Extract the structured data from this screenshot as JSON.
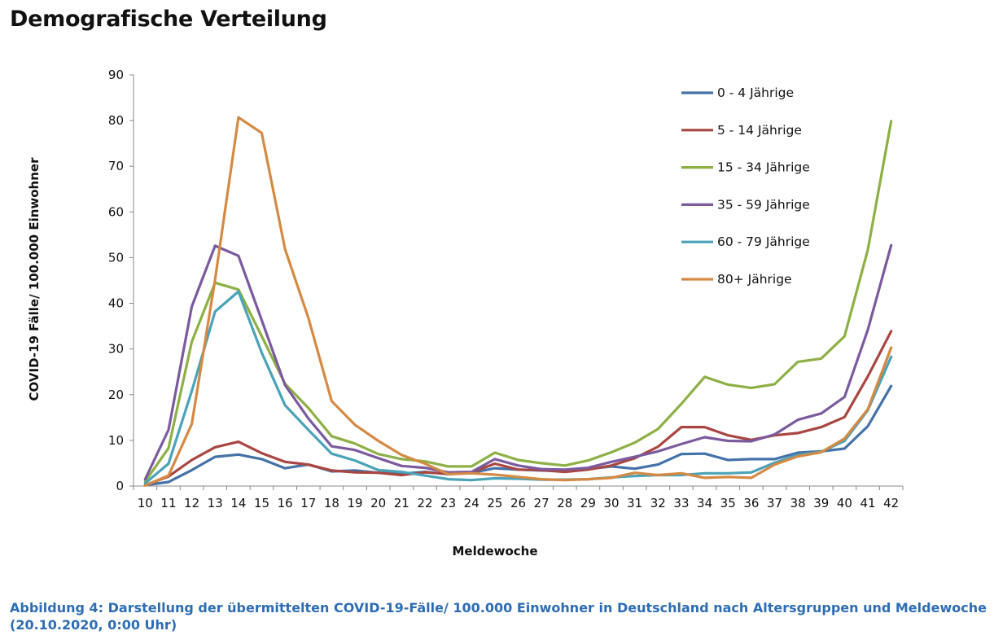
{
  "page": {
    "title": "Demografische Verteilung",
    "caption": "Abbildung 4: Darstellung der übermittelten COVID-19-Fälle/ 100.000 Einwohner in Deutschland nach Altersgruppen und Meldewoche (20.10.2020, 0:00 Uhr)",
    "caption_color": "#2e6db4"
  },
  "chart_data": {
    "type": "line",
    "xlabel": "Meldewoche",
    "ylabel": "COVID-19 Fälle/ 100.000 Einwohner",
    "ylim": [
      0,
      90
    ],
    "y_ticks": [
      0,
      10,
      20,
      30,
      40,
      50,
      60,
      70,
      80,
      90
    ],
    "grid": false,
    "legend_position": "top-right",
    "x": [
      10,
      11,
      12,
      13,
      14,
      15,
      16,
      17,
      18,
      19,
      20,
      21,
      22,
      23,
      24,
      25,
      26,
      27,
      28,
      29,
      30,
      31,
      32,
      33,
      34,
      35,
      36,
      37,
      38,
      39,
      40,
      41,
      42
    ],
    "series": [
      {
        "name": "0 - 4 Jährige",
        "color": "#4472a8",
        "values": [
          0.2,
          0.9,
          3.5,
          6.4,
          6.9,
          5.9,
          3.9,
          4.7,
          3.2,
          3.4,
          2.9,
          2.7,
          3.1,
          2.6,
          2.9,
          3.9,
          3.6,
          3.4,
          3.3,
          3.7,
          4.3,
          3.8,
          4.7,
          7.0,
          7.1,
          5.7,
          5.9,
          5.9,
          7.3,
          7.6,
          8.2,
          13.1,
          21.9
        ]
      },
      {
        "name": "5 - 14 Jährige",
        "color": "#a94642",
        "values": [
          0.2,
          2.1,
          5.7,
          8.5,
          9.7,
          7.2,
          5.3,
          4.7,
          3.4,
          3.0,
          2.9,
          2.4,
          3.0,
          2.7,
          3.0,
          4.9,
          3.6,
          3.5,
          3.1,
          3.6,
          4.5,
          6.1,
          8.6,
          12.9,
          12.9,
          11.1,
          10.1,
          11.1,
          11.6,
          12.9,
          15.1,
          24.0,
          33.9
        ]
      },
      {
        "name": "15 - 34 Jährige",
        "color": "#8db045",
        "values": [
          1.0,
          8.3,
          31.6,
          44.5,
          43.0,
          32.8,
          22.4,
          17.1,
          10.9,
          9.3,
          7.0,
          5.9,
          5.4,
          4.3,
          4.3,
          7.3,
          5.7,
          5.0,
          4.5,
          5.6,
          7.4,
          9.5,
          12.5,
          18.0,
          23.9,
          22.2,
          21.5,
          22.3,
          27.2,
          27.9,
          32.8,
          51.7,
          79.9
        ]
      },
      {
        "name": "35 - 59 Jährige",
        "color": "#7b5a9e",
        "values": [
          1.5,
          12.3,
          39.3,
          52.6,
          50.4,
          36.3,
          22.1,
          14.8,
          8.7,
          7.9,
          6.1,
          4.4,
          4.0,
          3.0,
          3.1,
          5.9,
          4.5,
          3.7,
          3.6,
          4.0,
          5.3,
          6.4,
          7.6,
          9.2,
          10.7,
          9.9,
          9.8,
          11.3,
          14.5,
          15.9,
          19.5,
          34.2,
          52.7
        ]
      },
      {
        "name": "60 - 79 Jährige",
        "color": "#4aa3b8",
        "values": [
          0.6,
          4.9,
          20.8,
          38.2,
          42.6,
          29.2,
          17.7,
          12.3,
          7.1,
          5.6,
          3.5,
          3.1,
          2.3,
          1.5,
          1.3,
          1.7,
          1.6,
          1.4,
          1.4,
          1.5,
          1.9,
          2.2,
          2.4,
          2.4,
          2.8,
          2.8,
          3.0,
          5.1,
          6.8,
          7.5,
          9.9,
          16.6,
          28.3
        ]
      },
      {
        "name": "80+ Jährige",
        "color": "#d58a44",
        "values": [
          0.1,
          2.3,
          13.6,
          45.2,
          80.7,
          77.3,
          51.9,
          36.8,
          18.6,
          13.4,
          9.9,
          6.8,
          4.9,
          2.6,
          2.8,
          2.5,
          2.0,
          1.5,
          1.3,
          1.5,
          1.8,
          2.9,
          2.4,
          2.8,
          1.8,
          2.0,
          1.8,
          4.7,
          6.5,
          7.4,
          10.4,
          16.8,
          30.3
        ]
      }
    ]
  }
}
